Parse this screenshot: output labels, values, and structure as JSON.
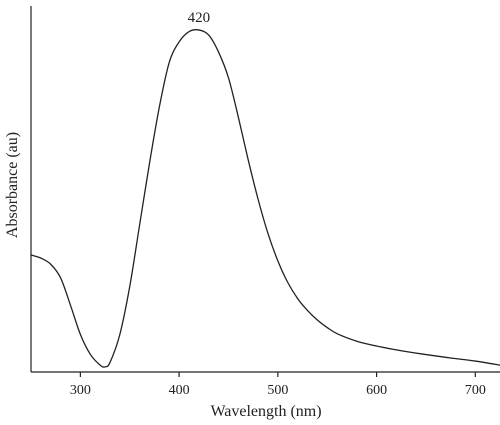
{
  "chart_data": {
    "type": "line",
    "xlabel": "Wavelength (nm)",
    "ylabel": "Absorbance (au)",
    "xlim": [
      250,
      725
    ],
    "ylim": [
      0,
      1.07
    ],
    "x_ticks": [
      300,
      400,
      500,
      600,
      700
    ],
    "y_ticks_labeled": false,
    "grid": false,
    "annotations": [
      {
        "text": "420",
        "x": 420,
        "y": 1.0
      }
    ],
    "series": [
      {
        "color": "#222222",
        "x": [
          250,
          260,
          270,
          280,
          290,
          300,
          310,
          320,
          325,
          330,
          340,
          350,
          360,
          370,
          380,
          390,
          400,
          410,
          420,
          430,
          440,
          450,
          460,
          470,
          480,
          490,
          500,
          510,
          520,
          530,
          540,
          550,
          560,
          580,
          600,
          625,
          650,
          675,
          700,
          725
        ],
        "y": [
          0.342,
          0.333,
          0.315,
          0.275,
          0.195,
          0.11,
          0.052,
          0.02,
          0.015,
          0.028,
          0.11,
          0.25,
          0.43,
          0.61,
          0.775,
          0.905,
          0.965,
          0.995,
          1.0,
          0.985,
          0.935,
          0.86,
          0.745,
          0.62,
          0.505,
          0.405,
          0.325,
          0.262,
          0.215,
          0.18,
          0.152,
          0.13,
          0.112,
          0.09,
          0.076,
          0.062,
          0.051,
          0.041,
          0.032,
          0.02
        ]
      }
    ]
  }
}
